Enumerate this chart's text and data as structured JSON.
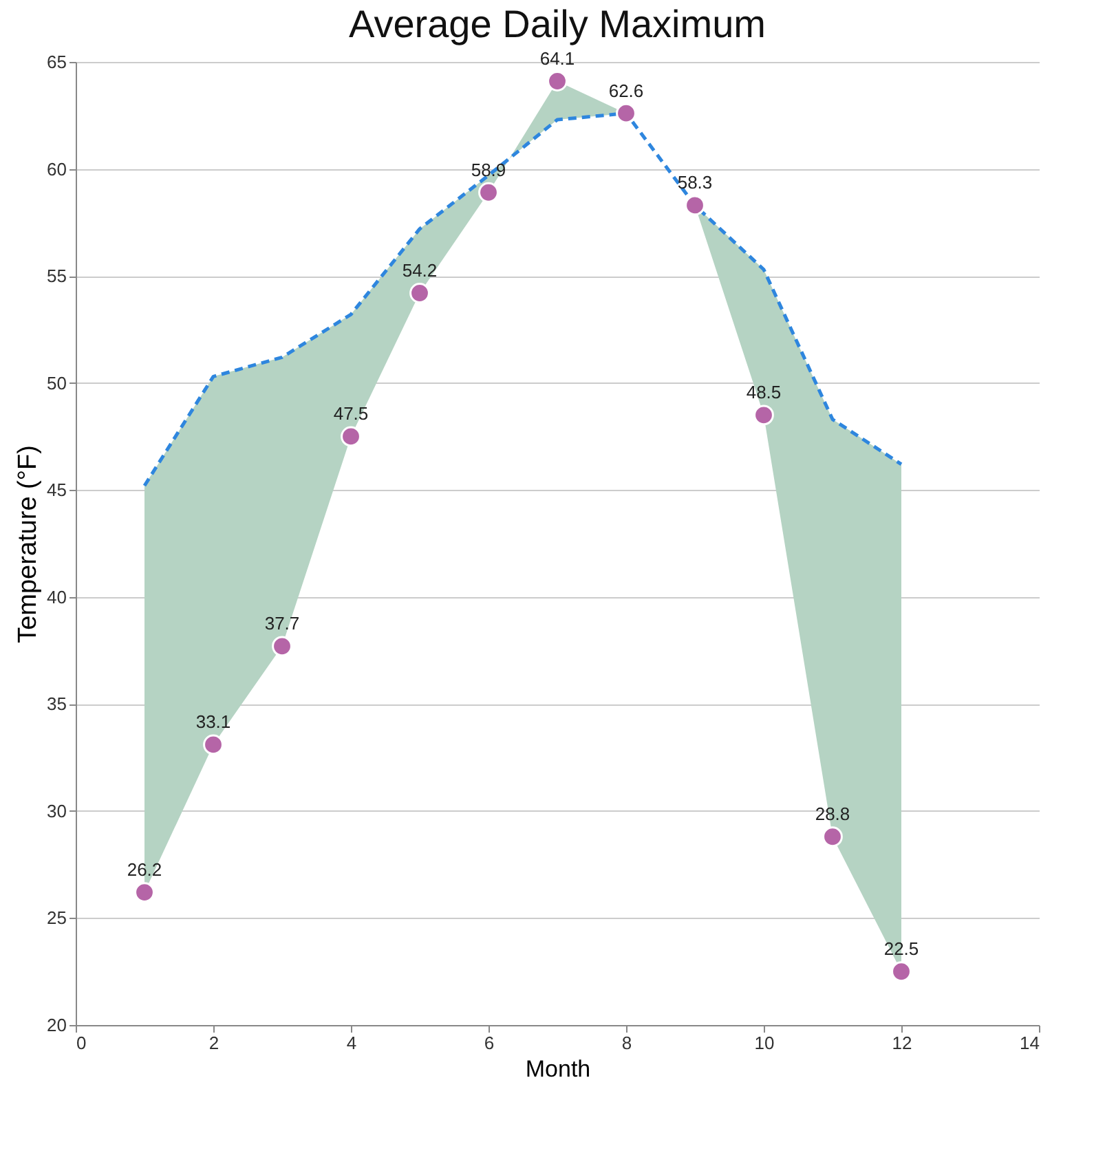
{
  "chart_data": {
    "type": "scatter",
    "title": "Average Daily Maximum",
    "xlabel": "Month",
    "ylabel": "Temperature (°F)",
    "x": [
      1,
      2,
      3,
      4,
      5,
      6,
      7,
      8,
      9,
      10,
      11,
      12
    ],
    "series": [
      {
        "type": "line",
        "color": "#2e86de",
        "line_style": "dashed",
        "marker": "none",
        "values": [
          45.2,
          50.3,
          51.2,
          53.2,
          57.2,
          59.7,
          62.3,
          62.6,
          58.3,
          55.3,
          48.3,
          46.2
        ],
        "lower": [
          26.2,
          33.1,
          37.7,
          47.5,
          54.2,
          58.9,
          64.1,
          62.6,
          58.3,
          48.5,
          28.8,
          22.5
        ],
        "upper": [
          45.2,
          50.3,
          51.2,
          53.2,
          57.2,
          59.7,
          62.3,
          62.6,
          58.3,
          55.3,
          48.3,
          46.2
        ]
      },
      {
        "color": "#b565a7",
        "marker": "circle",
        "values": [
          26.2,
          33.1,
          37.7,
          47.5,
          54.2,
          58.9,
          64.1,
          62.6,
          58.3,
          48.5,
          28.8,
          22.5
        ],
        "value_labels": [
          "26.2",
          "33.1",
          "37.7",
          "47.5",
          "54.2",
          "58.9",
          "64.1",
          "62.6",
          "58.3",
          "48.5",
          "28.8",
          "22.5"
        ]
      }
    ],
    "xlim": [
      0,
      14
    ],
    "xticks": [
      0,
      2,
      4,
      6,
      8,
      10,
      12,
      14
    ],
    "ylim": [
      20,
      65
    ],
    "yticks": [
      20,
      25,
      30,
      35,
      40,
      45,
      50,
      55,
      60,
      65
    ],
    "grid": "y"
  }
}
